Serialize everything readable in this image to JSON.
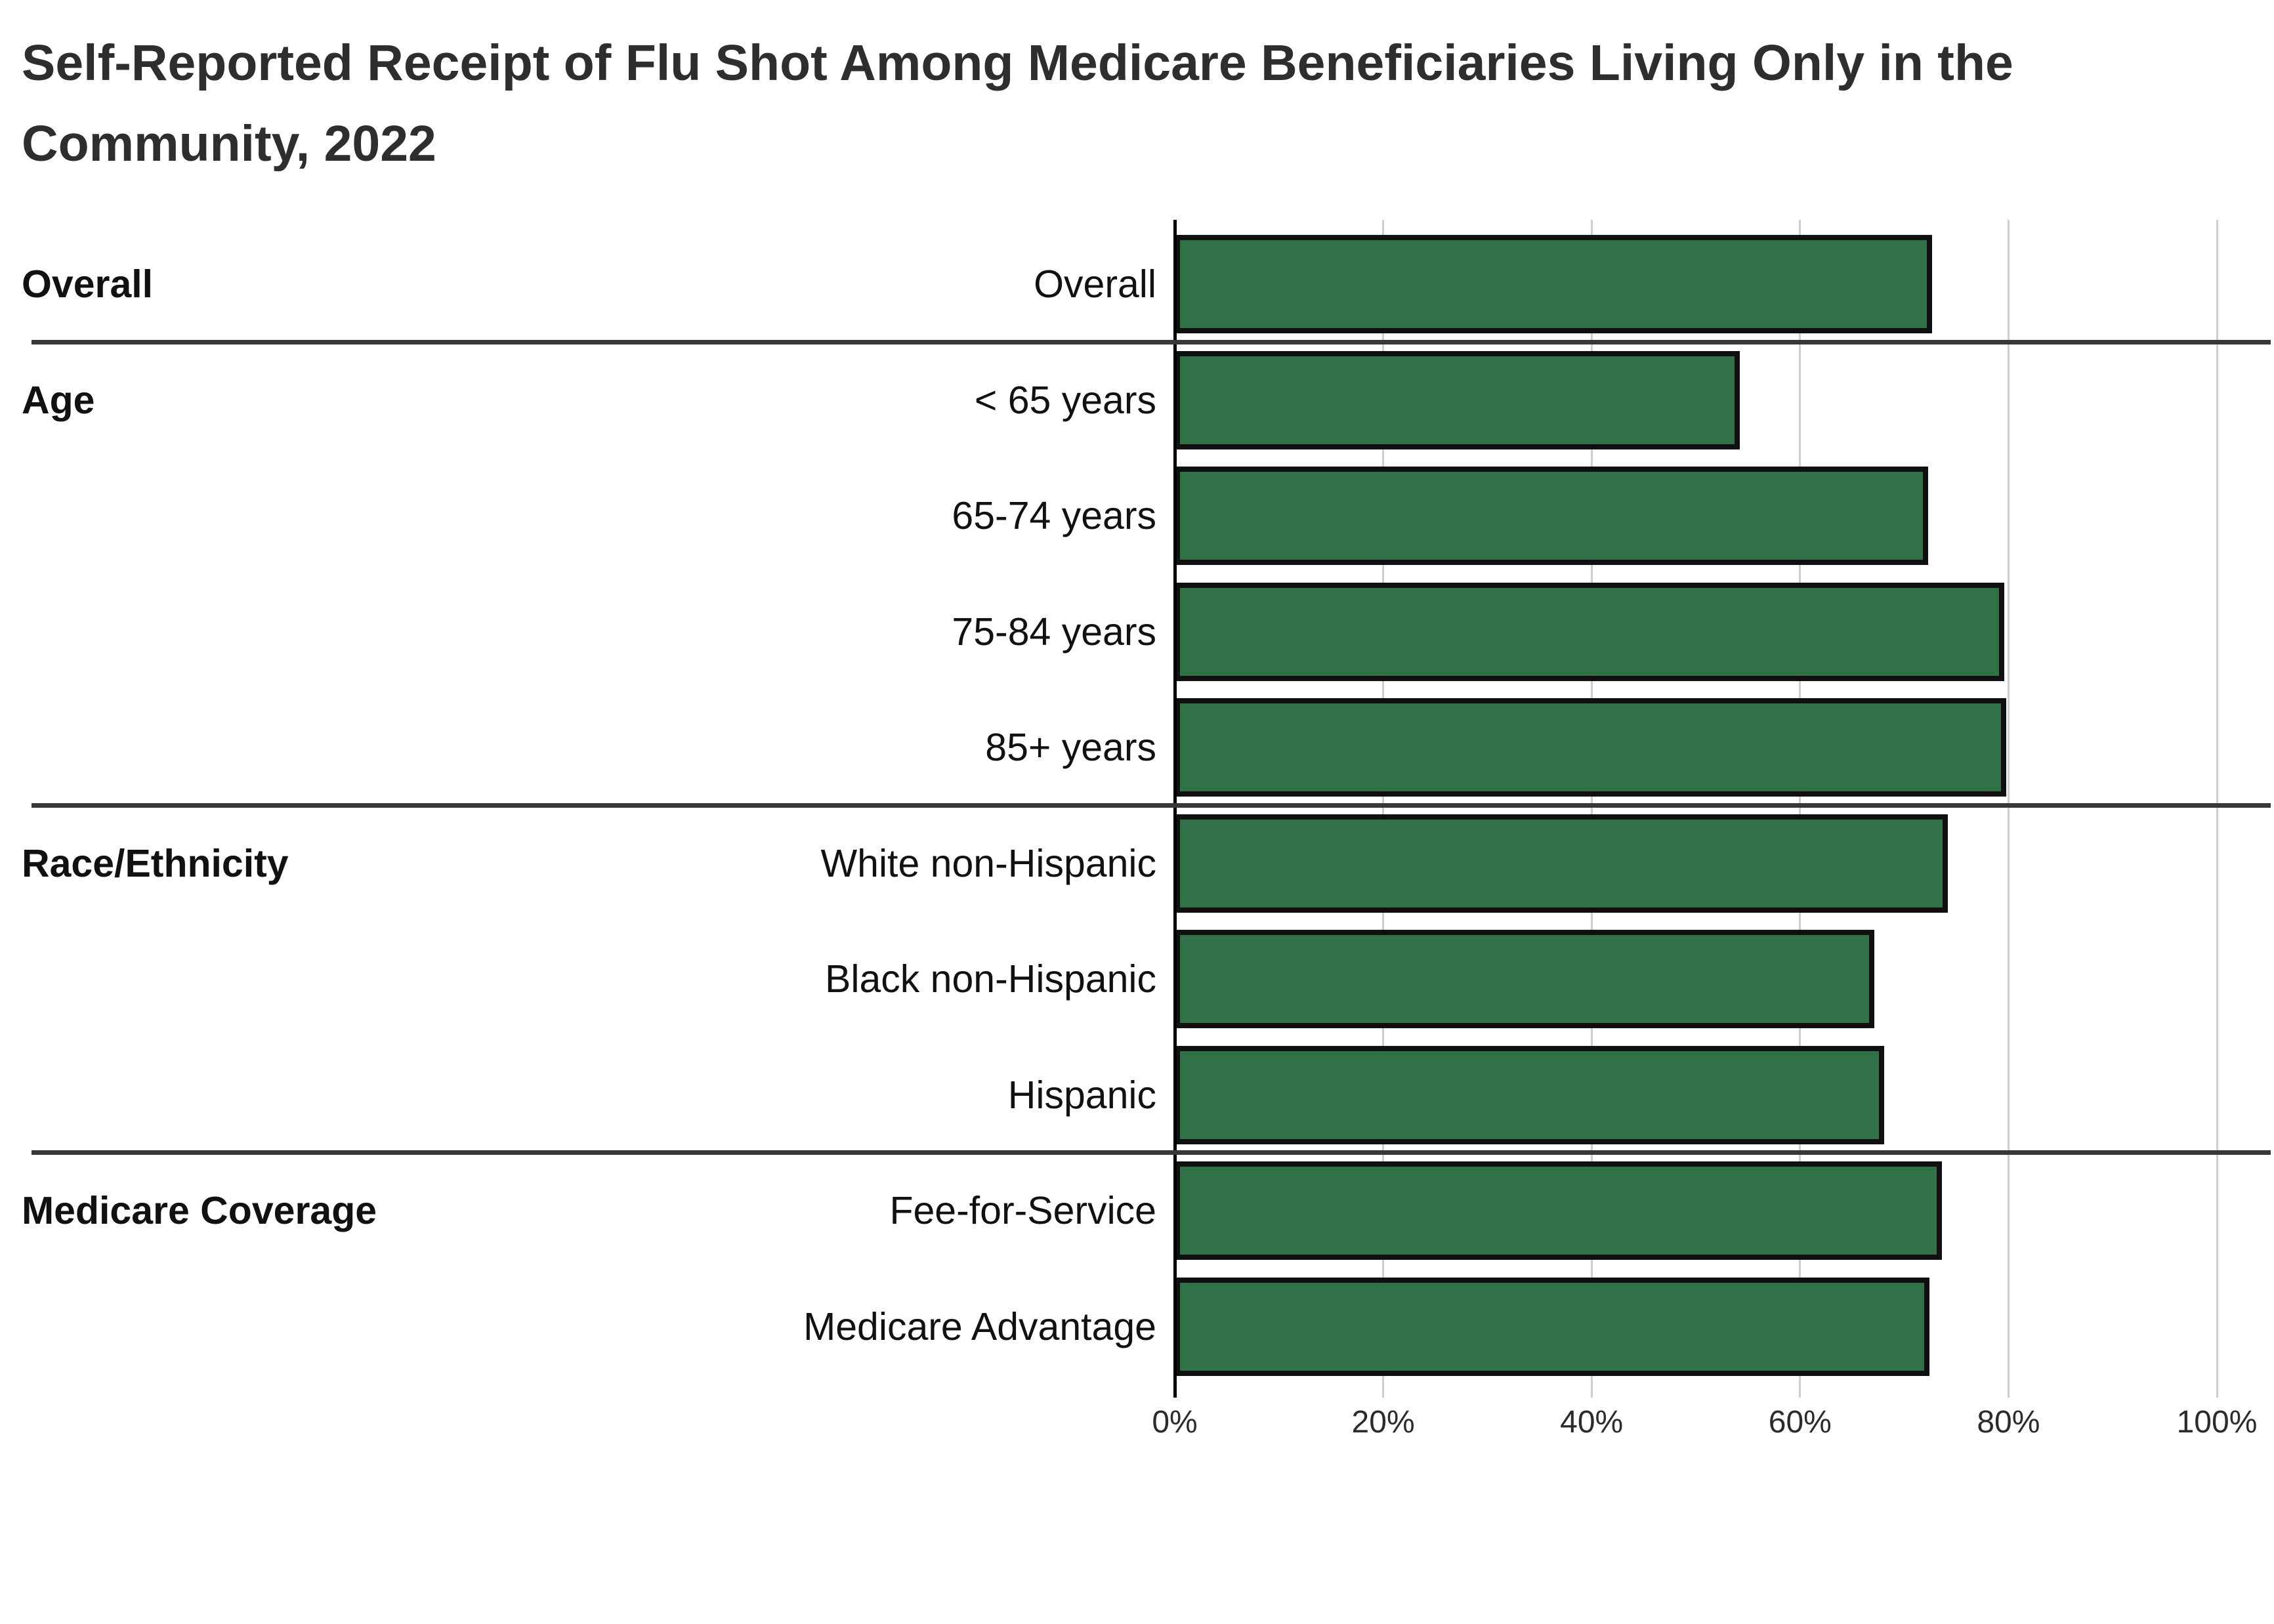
{
  "title": {
    "line1": "Self-Reported Receipt of Flu Shot Among Medicare Beneficiaries Living Only in the",
    "line2": "Community, 2022"
  },
  "chart_data": {
    "type": "bar",
    "orientation": "horizontal",
    "title": "Self-Reported Receipt of Flu Shot Among Medicare Beneficiaries Living Only in the Community, 2022",
    "xlabel": "",
    "ylabel": "",
    "xlim": [
      0,
      100
    ],
    "x_ticks": [
      "0%",
      "20%",
      "40%",
      "60%",
      "80%",
      "100%"
    ],
    "grid": true,
    "legend": false,
    "bar_color": "#317147",
    "bar_border_color": "#101010",
    "groups": [
      {
        "label": "Overall",
        "rows": [
          {
            "label": "Overall",
            "value": 72.7
          }
        ]
      },
      {
        "label": "Age",
        "rows": [
          {
            "label": "< 65 years",
            "value": 54.2
          },
          {
            "label": "65-74 years",
            "value": 72.3
          },
          {
            "label": "75-84 years",
            "value": 79.6
          },
          {
            "label": "85+ years",
            "value": 79.8
          }
        ]
      },
      {
        "label": "Race/Ethnicity",
        "rows": [
          {
            "label": "White non-Hispanic",
            "value": 74.2
          },
          {
            "label": "Black non-Hispanic",
            "value": 67.1
          },
          {
            "label": "Hispanic",
            "value": 68.1
          }
        ]
      },
      {
        "label": "Medicare Coverage",
        "rows": [
          {
            "label": "Fee-for-Service",
            "value": 73.6
          },
          {
            "label": "Medicare Advantage",
            "value": 72.4
          }
        ]
      }
    ]
  }
}
